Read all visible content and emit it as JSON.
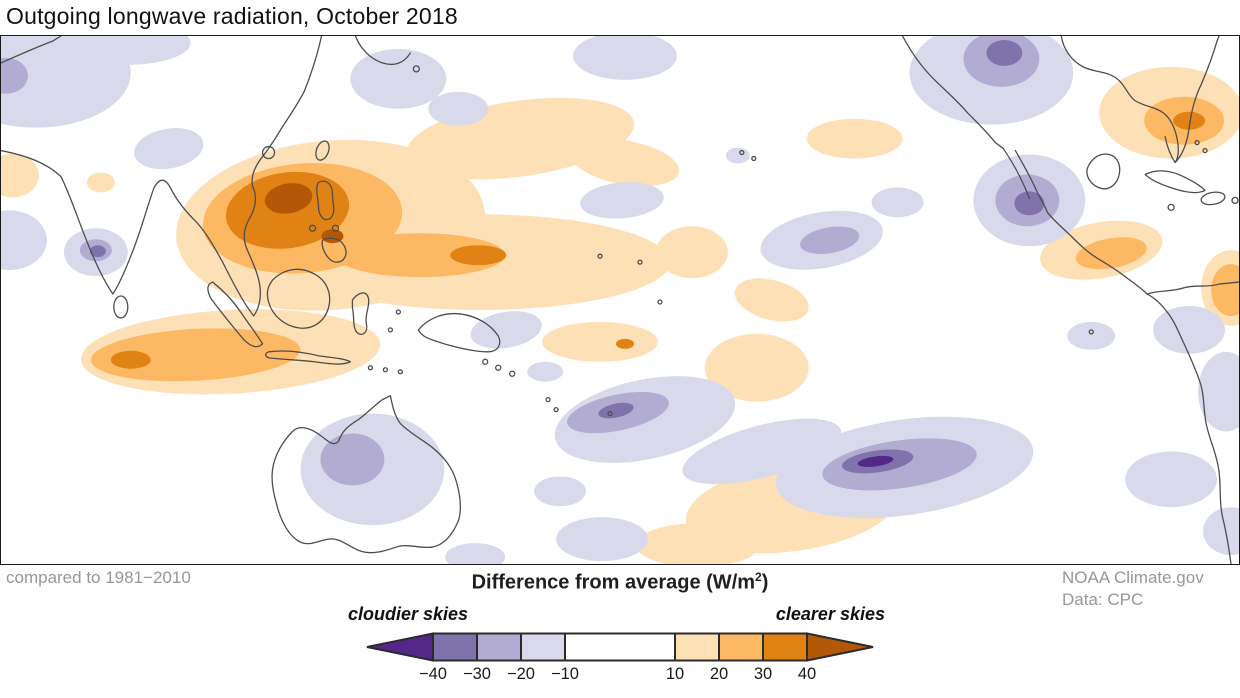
{
  "title": "Outgoing longwave radiation, October 2018",
  "footer": {
    "baseline_note": "compared to 1981−2010",
    "credit_line1": "NOAA Climate.gov",
    "credit_line2": "Data: CPC"
  },
  "legend": {
    "title_prefix": "Difference from average (W/m",
    "title_sup": "2",
    "title_suffix": ")",
    "left_label": "cloudier skies",
    "right_label": "clearer skies",
    "arrow_left_color": "#542788",
    "arrow_right_color": "#b35806",
    "cell_colors": [
      "#8073ac",
      "#b2abd2",
      "#d8daeb",
      "#ffffff",
      "#fee0b6",
      "#fdb863",
      "#e08214"
    ],
    "tick_labels": [
      "−40",
      "−30",
      "−20",
      "−10",
      "10",
      "20",
      "30",
      "40"
    ]
  },
  "palette": {
    "purple_4": "#542788",
    "purple_3": "#8073ac",
    "purple_2": "#b2abd2",
    "purple_1": "#d8daeb",
    "orange_1": "#fee0b6",
    "orange_2": "#fdb863",
    "orange_3": "#e08214",
    "orange_4": "#b35806"
  },
  "map": {
    "background": "#ffffff",
    "coastline_color": "#4d4d4d",
    "border_color": "#1a1a1a",
    "negative_meaning": "cloudier skies (negative OLR anomaly, purple)",
    "positive_meaning": "clearer skies (positive OLR anomaly, orange)"
  }
}
